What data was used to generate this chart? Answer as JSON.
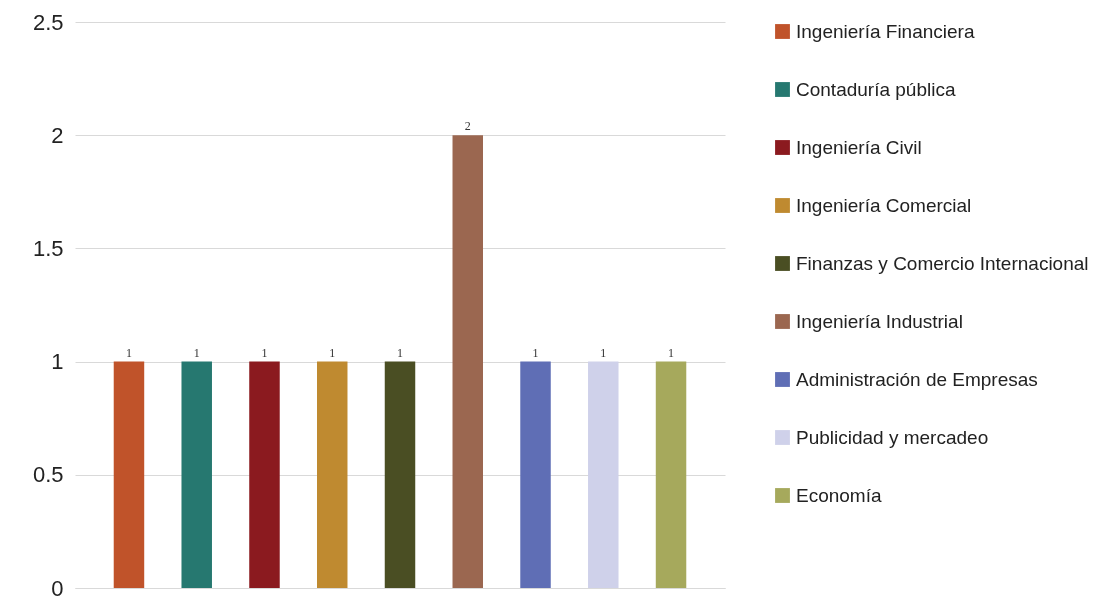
{
  "chart_data": {
    "type": "bar",
    "categories": [
      null
    ],
    "series": [
      {
        "name": "Ingeniería Financiera",
        "color": "#c0532a",
        "values": [
          1
        ]
      },
      {
        "name": "Contaduría pública",
        "color": "#267870",
        "values": [
          1
        ]
      },
      {
        "name": "Ingeniería Civil",
        "color": "#8b1a1f",
        "values": [
          1
        ]
      },
      {
        "name": "Ingeniería Comercial",
        "color": "#bf8a30",
        "values": [
          1
        ]
      },
      {
        "name": "Finanzas y Comercio Internacional",
        "color": "#4a4e23",
        "values": [
          1
        ]
      },
      {
        "name": "Ingeniería Industrial",
        "color": "#9b6750",
        "values": [
          2
        ]
      },
      {
        "name": "Administración de Empresas",
        "color": "#5f6eb5",
        "values": [
          1
        ]
      },
      {
        "name": "Publicidad y mercadeo",
        "color": "#cfd1ea",
        "values": [
          1
        ]
      },
      {
        "name": "Economía",
        "color": "#a6a95c",
        "values": [
          1
        ]
      }
    ],
    "ylim": [
      0,
      2.5
    ],
    "yticks": [
      0,
      0.5,
      1,
      1.5,
      2,
      2.5
    ],
    "grid": "y",
    "legend": "right",
    "tick_labels": "y",
    "data_labels": true
  }
}
